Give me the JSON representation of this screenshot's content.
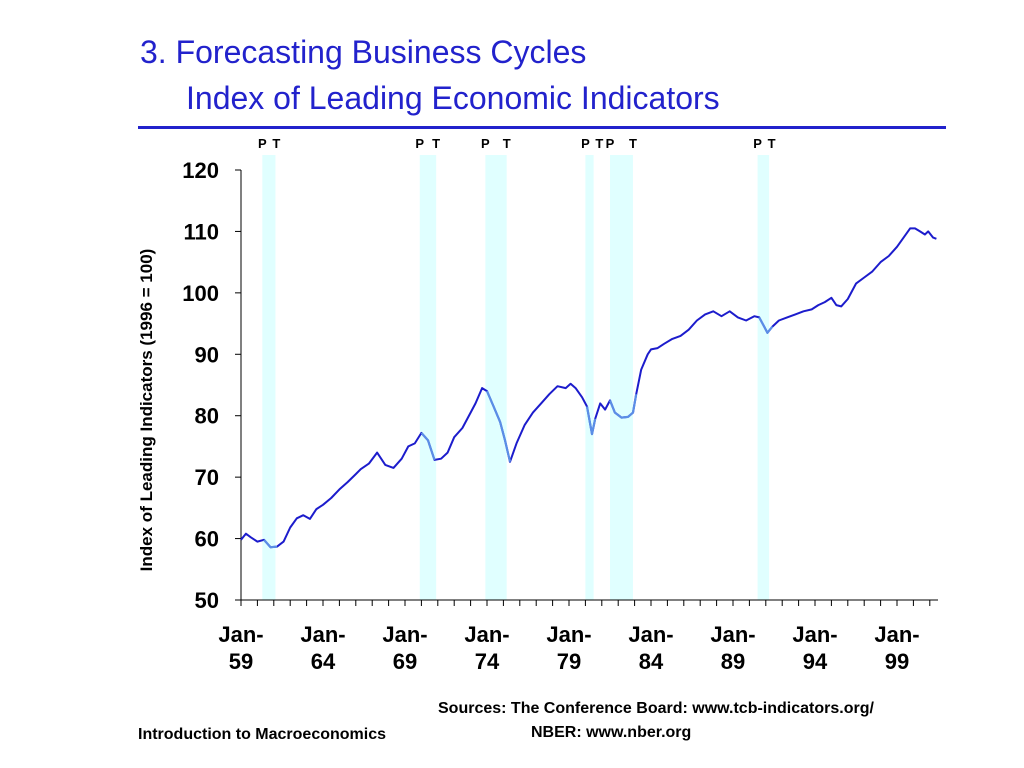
{
  "slide": {
    "title_line1": "3. Forecasting Business Cycles",
    "title_line2": "Index of Leading Economic Indicators",
    "sources_line1": "Sources: The Conference Board: www.tcb-indicators.org/",
    "sources_line2": "NBER: www.nber.org",
    "footer": "Introduction to Macroeconomics"
  },
  "colors": {
    "title": "#2222cc",
    "series_line": "#1c1ccc",
    "series_line_recession": "#5b8ee6",
    "recession_band": "#e0ffff"
  },
  "chart_data": {
    "type": "line",
    "title": "",
    "xlabel": "",
    "ylabel": "Index of Leading Indicators (1996 = 100)",
    "ylim": [
      50,
      120
    ],
    "y_ticks": [
      50,
      60,
      70,
      80,
      90,
      100,
      110,
      120
    ],
    "xlim": [
      1959.0,
      2001.5
    ],
    "x_tick_labels": [
      {
        "year": 1959,
        "line1": "Jan-",
        "line2": "59"
      },
      {
        "year": 1964,
        "line1": "Jan-",
        "line2": "64"
      },
      {
        "year": 1969,
        "line1": "Jan-",
        "line2": "69"
      },
      {
        "year": 1974,
        "line1": "Jan-",
        "line2": "74"
      },
      {
        "year": 1979,
        "line1": "Jan-",
        "line2": "79"
      },
      {
        "year": 1984,
        "line1": "Jan-",
        "line2": "84"
      },
      {
        "year": 1989,
        "line1": "Jan-",
        "line2": "89"
      },
      {
        "year": 1994,
        "line1": "Jan-",
        "line2": "94"
      },
      {
        "year": 1999,
        "line1": "Jan-",
        "line2": "99"
      }
    ],
    "recessions": [
      {
        "peak": 1960.3,
        "trough": 1961.1,
        "peak_label": "P",
        "trough_label": "T"
      },
      {
        "peak": 1969.9,
        "trough": 1970.9,
        "peak_label": "P",
        "trough_label": "T"
      },
      {
        "peak": 1973.9,
        "trough": 1975.2,
        "peak_label": "P",
        "trough_label": "T"
      },
      {
        "peak": 1980.0,
        "trough": 1980.5,
        "peak_label": "P",
        "trough_label": "T"
      },
      {
        "peak": 1981.5,
        "trough": 1982.9,
        "peak_label": "P",
        "trough_label": "T"
      },
      {
        "peak": 1990.5,
        "trough": 1991.2,
        "peak_label": "P",
        "trough_label": "T"
      }
    ],
    "series": [
      {
        "x": [
          1959.0,
          1959.3,
          1959.6,
          1960.0,
          1960.4,
          1960.8,
          1961.2,
          1961.6,
          1962.0,
          1962.4,
          1962.8,
          1963.2,
          1963.6,
          1964.0,
          1964.5,
          1965.0,
          1965.5,
          1966.0,
          1966.3,
          1966.8,
          1967.3,
          1967.8,
          1968.3,
          1968.8,
          1969.2,
          1969.6,
          1970.0,
          1970.4,
          1970.8,
          1971.2,
          1971.6,
          1972.0,
          1972.5,
          1973.0,
          1973.3,
          1973.7,
          1974.0,
          1974.4,
          1974.8,
          1975.1,
          1975.4,
          1975.8,
          1976.3,
          1976.8,
          1977.3,
          1977.8,
          1978.3,
          1978.8,
          1979.1,
          1979.4,
          1979.8,
          1980.1,
          1980.4,
          1980.6,
          1980.9,
          1981.2,
          1981.5,
          1981.8,
          1982.2,
          1982.6,
          1982.9,
          1983.1,
          1983.4,
          1983.8,
          1984.0,
          1984.4,
          1984.8,
          1985.3,
          1985.8,
          1986.3,
          1986.8,
          1987.3,
          1987.8,
          1988.3,
          1988.8,
          1989.3,
          1989.8,
          1990.3,
          1990.6,
          1990.9,
          1991.1,
          1991.4,
          1991.8,
          1992.3,
          1992.8,
          1993.3,
          1993.8,
          1994.2,
          1994.6,
          1995.0,
          1995.3,
          1995.6,
          1996.0,
          1996.5,
          1997.0,
          1997.5,
          1998.0,
          1998.5,
          1999.0,
          1999.4,
          1999.8,
          2000.1,
          2000.4,
          2000.7,
          2000.9,
          2001.2,
          2001.4
        ],
        "y": [
          59.8,
          60.8,
          60.2,
          59.5,
          59.8,
          58.6,
          58.7,
          59.5,
          61.8,
          63.3,
          63.8,
          63.2,
          64.8,
          65.5,
          66.6,
          68.0,
          69.2,
          70.5,
          71.3,
          72.2,
          74.0,
          72.0,
          71.5,
          73.0,
          75.0,
          75.5,
          77.2,
          76.0,
          72.8,
          73.0,
          74.0,
          76.5,
          78.0,
          80.5,
          82.0,
          84.5,
          84.0,
          81.5,
          79.0,
          76.0,
          72.5,
          75.5,
          78.5,
          80.5,
          82.0,
          83.5,
          84.8,
          84.5,
          85.2,
          84.5,
          83.0,
          81.5,
          77.0,
          79.5,
          82.0,
          81.0,
          82.5,
          80.5,
          79.7,
          79.8,
          80.5,
          83.5,
          87.5,
          90.0,
          90.8,
          91.0,
          91.7,
          92.5,
          93.0,
          94.0,
          95.5,
          96.5,
          97.0,
          96.2,
          97.0,
          96.0,
          95.5,
          96.2,
          96.0,
          94.5,
          93.5,
          94.5,
          95.5,
          96.0,
          96.5,
          97.0,
          97.3,
          98.0,
          98.5,
          99.2,
          98.0,
          97.8,
          99.0,
          101.5,
          102.5,
          103.5,
          105.0,
          106.0,
          107.5,
          109.0,
          110.5,
          110.5,
          110.0,
          109.5,
          110.0,
          109.0,
          108.8
        ]
      }
    ]
  }
}
